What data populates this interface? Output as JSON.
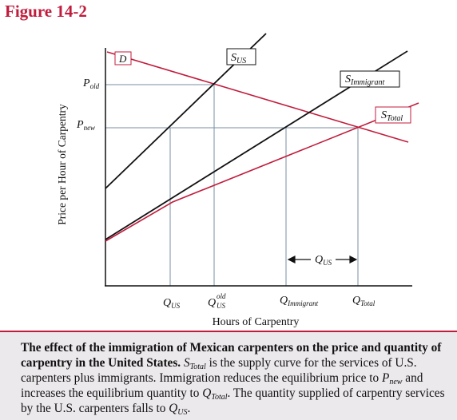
{
  "figure_label": "Figure 14-2",
  "diagram": {
    "y_axis_label": "Price per Hour of Carpentry",
    "x_axis_label": "Hours of Carpentry",
    "curves": {
      "demand": "D",
      "supply_us": {
        "main": "S",
        "sub": "US"
      },
      "supply_immigrant": {
        "main": "S",
        "sub": "Immigrant"
      },
      "supply_total": {
        "main": "S",
        "sub": "Total"
      }
    },
    "y_ticks": {
      "p_old": {
        "main": "P",
        "sub": "old"
      },
      "p_new": {
        "main": "P",
        "sub": "new"
      }
    },
    "x_ticks": {
      "q_us": {
        "main": "Q",
        "sub": "US"
      },
      "q_us_old": {
        "main": "Q",
        "sub": "US",
        "sup": "old"
      },
      "q_immigrant": {
        "main": "Q",
        "sub": "Immigrant"
      },
      "q_total": {
        "main": "Q",
        "sub": "Total"
      }
    },
    "bracket": {
      "main": "Q",
      "sub": "US"
    },
    "colors": {
      "red": "#c01c3c",
      "black": "#111111",
      "gridline": "#7a8fa6"
    }
  },
  "caption": {
    "bold": "The effect of the immigration of Mexican carpenters on the price and quantity of carpentry in the United States.",
    "s1_pre": "",
    "s1_main": "S",
    "s1_sub": "Total",
    "s1_text": " is the supply curve for the services of U.S. carpenters plus immigrants. Immigration reduces the equilibrium price to ",
    "p_main": "P",
    "p_sub": "new",
    "s2_text": " and increases the equilibrium quantity to ",
    "q_main": "Q",
    "q_sub": "Total",
    "s3_text": ". The quantity supplied of carpentry services by the U.S. carpenters falls to ",
    "q2_main": "Q",
    "q2_sub": "US",
    "end": "."
  }
}
